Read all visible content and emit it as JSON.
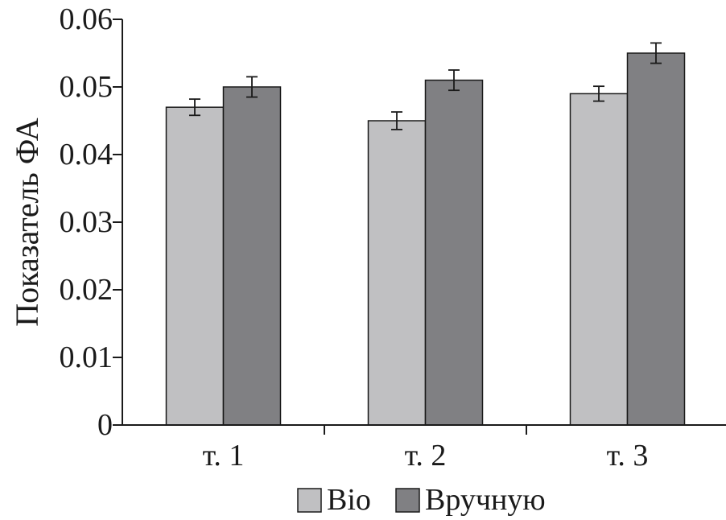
{
  "chart_data": {
    "type": "bar",
    "title": "",
    "xlabel": "",
    "ylabel": "Показатель ФА",
    "categories": [
      "т. 1",
      "т. 2",
      "т. 3"
    ],
    "ylim": [
      0,
      0.06
    ],
    "yticks": [
      "0",
      "0.01",
      "0.02",
      "0.03",
      "0.04",
      "0.05",
      "0.06"
    ],
    "grid": false,
    "legend_position": "bottom",
    "series": [
      {
        "name": "Bio",
        "color": "#c0c0c2",
        "values": [
          0.047,
          0.045,
          0.049
        ],
        "errors": [
          0.0012,
          0.0013,
          0.0011
        ]
      },
      {
        "name": "Вручную",
        "color": "#808083",
        "values": [
          0.05,
          0.051,
          0.055
        ],
        "errors": [
          0.0015,
          0.0015,
          0.0015
        ]
      }
    ]
  }
}
